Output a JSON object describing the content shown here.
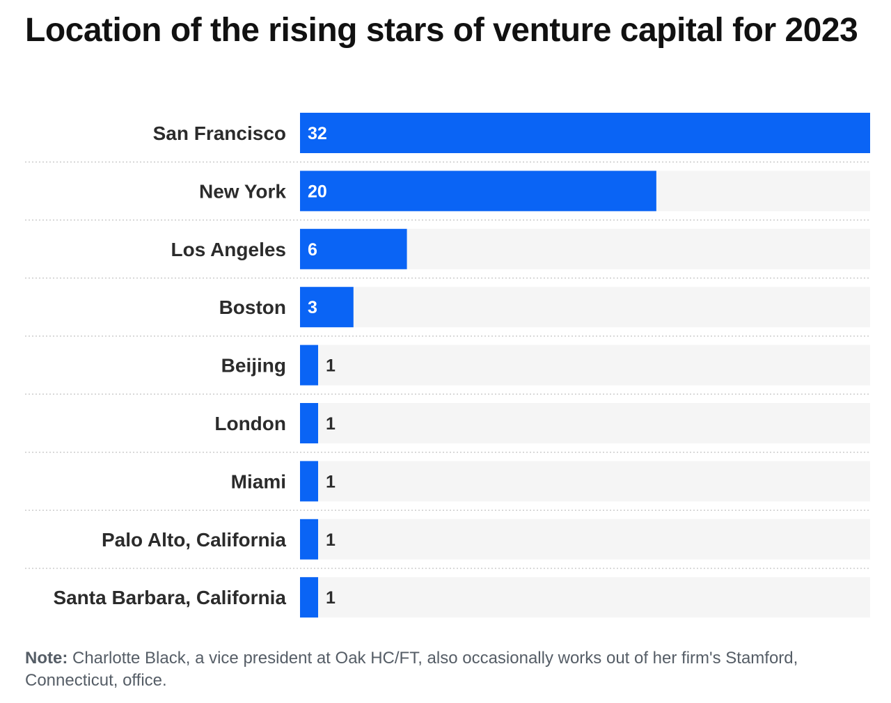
{
  "colors": {
    "bar": "#0a64f5",
    "track": "#f5f5f5",
    "label_text": "#2b2b2b",
    "value_inside": "#ffffff",
    "value_outside": "#2b2b2b",
    "divider": "#cccccc",
    "note_text": "#555d66"
  },
  "chart_data": {
    "type": "bar",
    "orientation": "horizontal",
    "title": "Location of the rising stars of venture capital for 2023",
    "categories": [
      "San Francisco",
      "New York",
      "Los Angeles",
      "Boston",
      "Beijing",
      "London",
      "Miami",
      "Palo Alto, California",
      "Santa Barbara, California"
    ],
    "values": [
      32,
      20,
      6,
      3,
      1,
      1,
      1,
      1,
      1
    ],
    "xlabel": "",
    "ylabel": "",
    "xlim": [
      0,
      32
    ],
    "grid": false,
    "legend": "none"
  },
  "note": {
    "label": "Note:",
    "text": "Charlotte Black, a vice president at Oak HC/FT, also occasionally works out of her firm's Stamford, Connecticut, office."
  }
}
